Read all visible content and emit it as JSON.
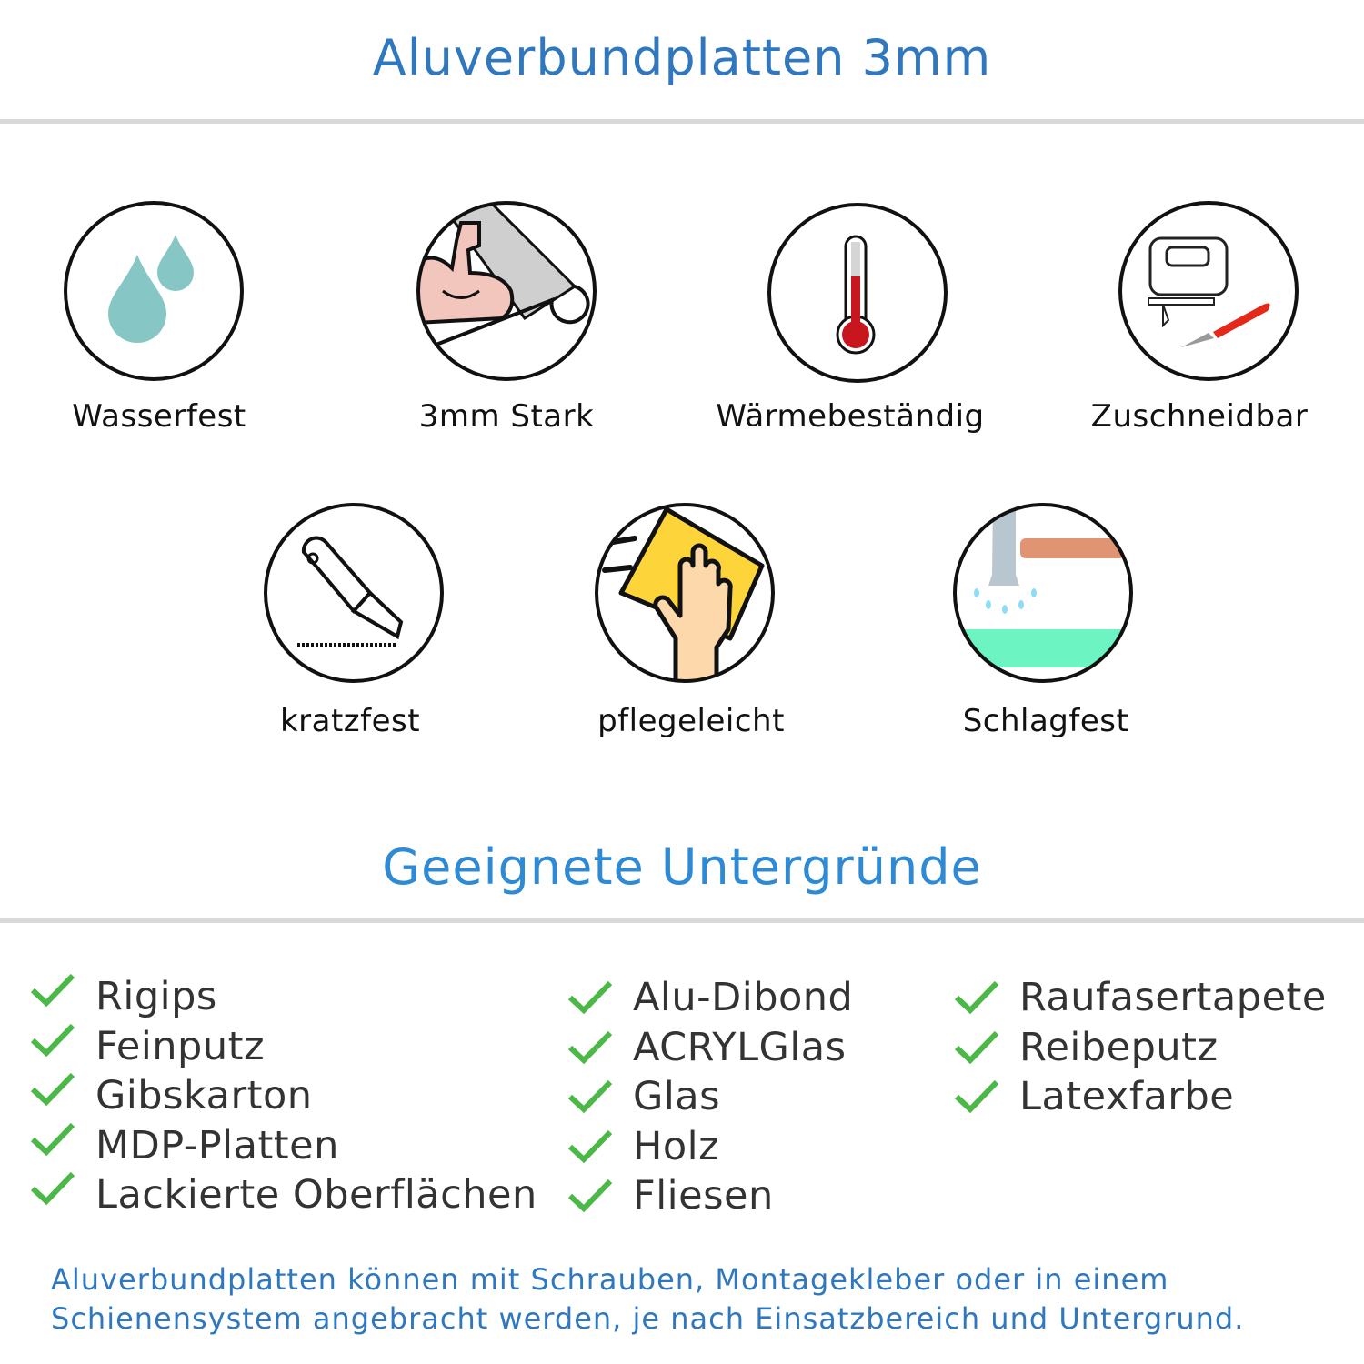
{
  "header": {
    "title": "Aluverbundplatten 3mm"
  },
  "features": [
    {
      "label": "Wasserfest",
      "icon": "water-drops-icon"
    },
    {
      "label": "3mm Stark",
      "icon": "strong-arm-icon"
    },
    {
      "label": "Wärmebeständig",
      "icon": "thermometer-icon"
    },
    {
      "label": "Zuschneidbar",
      "icon": "jigsaw-knife-icon"
    },
    {
      "label": "kratzfest",
      "icon": "cutter-knife-icon"
    },
    {
      "label": "pflegeleicht",
      "icon": "cleaning-hand-icon"
    },
    {
      "label": "Schlagfest",
      "icon": "hammer-icon"
    }
  ],
  "surfaces": {
    "title": "Geeignete Untergründe",
    "columns": [
      [
        "Rigips",
        "Feinputz",
        "Gibskarton",
        "MDP-Platten",
        "Lackierte Oberflächen"
      ],
      [
        "Alu-Dibond",
        "ACRYLGlas",
        "Glas",
        "Holz",
        "Fliesen"
      ],
      [
        "Raufasertapete",
        "Reibeputz",
        "Latexfarbe"
      ]
    ]
  },
  "footer": {
    "line1": "Aluverbundplatten können mit Schrauben, Montagekleber oder in einem",
    "line2": "Schienensystem angebracht werden, je nach Einsatzbereich und Untergrund."
  },
  "colors": {
    "title": "#2f78c0",
    "subtitle": "#2e8ad4",
    "check": "#4cb848",
    "rule": "#d9d9d9"
  }
}
